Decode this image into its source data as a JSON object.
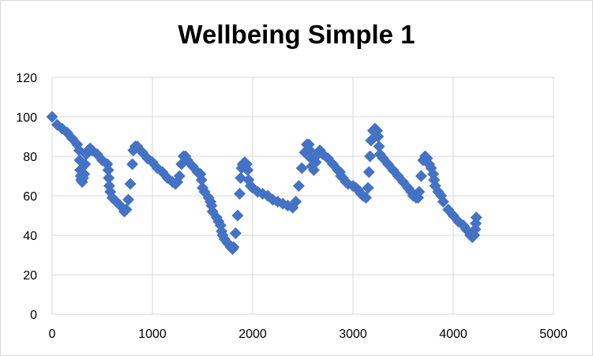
{
  "chart_data": {
    "type": "scatter",
    "title": "Wellbeing Simple 1",
    "xlabel": "",
    "ylabel": "",
    "xlim": [
      0,
      5000
    ],
    "ylim": [
      0,
      120
    ],
    "x_ticks": [
      "0",
      "1000",
      "2000",
      "3000",
      "4000",
      "5000"
    ],
    "y_ticks": [
      "0",
      "20",
      "40",
      "60",
      "80",
      "100",
      "120"
    ],
    "grid": true,
    "legend": "none",
    "marker": "diamond",
    "color": "#4472C4",
    "series": [
      {
        "values": [
          [
            0,
            100
          ],
          [
            50,
            96
          ],
          [
            100,
            94
          ],
          [
            150,
            92
          ],
          [
            200,
            89
          ],
          [
            250,
            86
          ],
          [
            270,
            83
          ],
          [
            275,
            78
          ],
          [
            280,
            73
          ],
          [
            285,
            70
          ],
          [
            290,
            68
          ],
          [
            300,
            67
          ],
          [
            310,
            69
          ],
          [
            320,
            71
          ],
          [
            330,
            76
          ],
          [
            340,
            81
          ],
          [
            360,
            83
          ],
          [
            380,
            84
          ],
          [
            400,
            83
          ],
          [
            450,
            81
          ],
          [
            500,
            78
          ],
          [
            550,
            76
          ],
          [
            560,
            73
          ],
          [
            565,
            69
          ],
          [
            570,
            65
          ],
          [
            580,
            62
          ],
          [
            600,
            59
          ],
          [
            640,
            57
          ],
          [
            680,
            55
          ],
          [
            720,
            52
          ],
          [
            740,
            53
          ],
          [
            760,
            58
          ],
          [
            780,
            66
          ],
          [
            800,
            76
          ],
          [
            810,
            83
          ],
          [
            830,
            85
          ],
          [
            850,
            85
          ],
          [
            900,
            82
          ],
          [
            950,
            79
          ],
          [
            1000,
            77
          ],
          [
            1050,
            74
          ],
          [
            1100,
            72
          ],
          [
            1150,
            69
          ],
          [
            1200,
            67
          ],
          [
            1230,
            66
          ],
          [
            1250,
            67
          ],
          [
            1270,
            70
          ],
          [
            1290,
            76
          ],
          [
            1310,
            80
          ],
          [
            1330,
            80
          ],
          [
            1350,
            78
          ],
          [
            1400,
            75
          ],
          [
            1450,
            72
          ],
          [
            1480,
            71
          ],
          [
            1490,
            68
          ],
          [
            1500,
            64
          ],
          [
            1520,
            62
          ],
          [
            1560,
            59
          ],
          [
            1580,
            57
          ],
          [
            1590,
            55
          ],
          [
            1600,
            52
          ],
          [
            1640,
            49
          ],
          [
            1660,
            47
          ],
          [
            1680,
            45
          ],
          [
            1690,
            42
          ],
          [
            1700,
            40
          ],
          [
            1720,
            38
          ],
          [
            1750,
            36
          ],
          [
            1780,
            34
          ],
          [
            1800,
            33
          ],
          [
            1810,
            34
          ],
          [
            1830,
            41
          ],
          [
            1850,
            50
          ],
          [
            1870,
            61
          ],
          [
            1880,
            69
          ],
          [
            1890,
            74
          ],
          [
            1900,
            76
          ],
          [
            1920,
            77
          ],
          [
            1940,
            76
          ],
          [
            1950,
            73
          ],
          [
            1960,
            68
          ],
          [
            1980,
            65
          ],
          [
            2000,
            64
          ],
          [
            2050,
            62
          ],
          [
            2100,
            61
          ],
          [
            2150,
            60
          ],
          [
            2200,
            58
          ],
          [
            2250,
            57
          ],
          [
            2300,
            56
          ],
          [
            2350,
            55
          ],
          [
            2400,
            54
          ],
          [
            2430,
            57
          ],
          [
            2460,
            65
          ],
          [
            2490,
            74
          ],
          [
            2520,
            82
          ],
          [
            2540,
            86
          ],
          [
            2560,
            86
          ],
          [
            2570,
            83
          ],
          [
            2580,
            79
          ],
          [
            2590,
            75
          ],
          [
            2610,
            73
          ],
          [
            2630,
            77
          ],
          [
            2650,
            81
          ],
          [
            2670,
            83
          ],
          [
            2700,
            81
          ],
          [
            2750,
            79
          ],
          [
            2800,
            76
          ],
          [
            2850,
            73
          ],
          [
            2870,
            72
          ],
          [
            2880,
            70
          ],
          [
            2900,
            69
          ],
          [
            2930,
            67
          ],
          [
            2950,
            66
          ],
          [
            3000,
            65
          ],
          [
            3030,
            64
          ],
          [
            3050,
            63
          ],
          [
            3080,
            61
          ],
          [
            3100,
            60
          ],
          [
            3130,
            59
          ],
          [
            3150,
            64
          ],
          [
            3160,
            72
          ],
          [
            3170,
            80
          ],
          [
            3180,
            88
          ],
          [
            3200,
            93
          ],
          [
            3220,
            94
          ],
          [
            3240,
            93
          ],
          [
            3250,
            90
          ],
          [
            3260,
            85
          ],
          [
            3270,
            81
          ],
          [
            3300,
            79
          ],
          [
            3350,
            76
          ],
          [
            3400,
            73
          ],
          [
            3450,
            70
          ],
          [
            3500,
            67
          ],
          [
            3550,
            64
          ],
          [
            3580,
            62
          ],
          [
            3600,
            60
          ],
          [
            3630,
            59
          ],
          [
            3650,
            59
          ],
          [
            3660,
            62
          ],
          [
            3680,
            70
          ],
          [
            3700,
            78
          ],
          [
            3720,
            80
          ],
          [
            3740,
            79
          ],
          [
            3760,
            76
          ],
          [
            3780,
            74
          ],
          [
            3800,
            71
          ],
          [
            3810,
            68
          ],
          [
            3820,
            65
          ],
          [
            3850,
            62
          ],
          [
            3880,
            60
          ],
          [
            3900,
            57
          ],
          [
            3950,
            53
          ],
          [
            4000,
            50
          ],
          [
            4050,
            47
          ],
          [
            4100,
            45
          ],
          [
            4130,
            43
          ],
          [
            4150,
            42
          ],
          [
            4170,
            40
          ],
          [
            4190,
            39
          ],
          [
            4210,
            40
          ],
          [
            4220,
            43
          ],
          [
            4225,
            46
          ],
          [
            4230,
            49
          ]
        ]
      }
    ]
  }
}
